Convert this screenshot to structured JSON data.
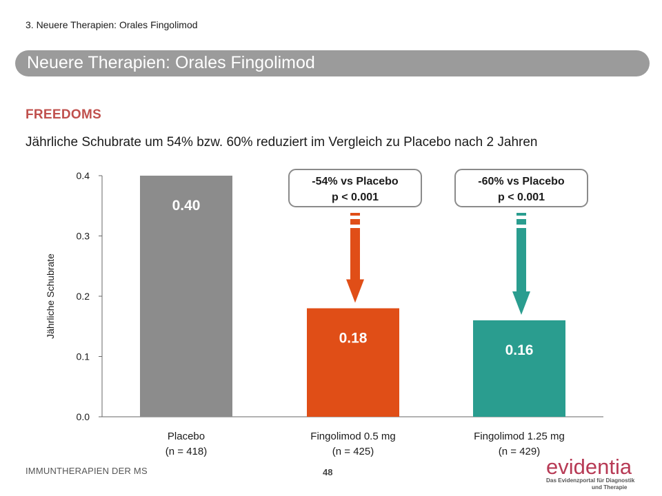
{
  "header": {
    "breadcrumb": "3. Neuere Therapien: Orales Fingolimod",
    "title": "Neuere Therapien: Orales Fingolimod"
  },
  "content": {
    "section_title": "FREEDOMS",
    "lead": "Jährliche Schubrate um 54% bzw. 60% reduziert im Vergleich zu Placebo nach 2 Jahren"
  },
  "footer": {
    "left_text": "IMMUNTHERAPIEN DER MS",
    "page_number": "48"
  },
  "logo": {
    "name": "evidentia",
    "tagline_line1": "Das Evidenzportal für Diagnostik",
    "tagline_line2": "und Therapie"
  },
  "colors": {
    "placebo": "#8c8c8c",
    "dose_05": "#e04e17",
    "dose_125": "#2a9d8f",
    "title_bar": "#9b9b9b",
    "section_title": "#c0504d",
    "logo": "#b73a55"
  },
  "chart_data": {
    "type": "bar",
    "title": "",
    "xlabel": "",
    "ylabel": "Jährliche Schubrate",
    "ylim": [
      0,
      0.4
    ],
    "yticks": [
      "0.0",
      "0.1",
      "0.2",
      "0.3",
      "0.4"
    ],
    "ytick_values": [
      0,
      0.1,
      0.2,
      0.3,
      0.4
    ],
    "categories": [
      [
        "Placebo",
        "(n = 418)"
      ],
      [
        "Fingolimod 0.5 mg",
        "(n = 425)"
      ],
      [
        "Fingolimod 1.25 mg",
        "(n = 429)"
      ]
    ],
    "values": [
      0.4,
      0.18,
      0.16
    ],
    "value_labels": [
      "0.40",
      "0.18",
      "0.16"
    ],
    "bar_colors": [
      "#8c8c8c",
      "#e04e17",
      "#2a9d8f"
    ],
    "grid": false,
    "annotations": [
      {
        "target_index": 1,
        "lines": [
          "-54% vs Placebo",
          "p < 0.001"
        ],
        "color": "#e04e17"
      },
      {
        "target_index": 2,
        "lines": [
          "-60% vs Placebo",
          "p < 0.001"
        ],
        "color": "#2a9d8f"
      }
    ]
  }
}
